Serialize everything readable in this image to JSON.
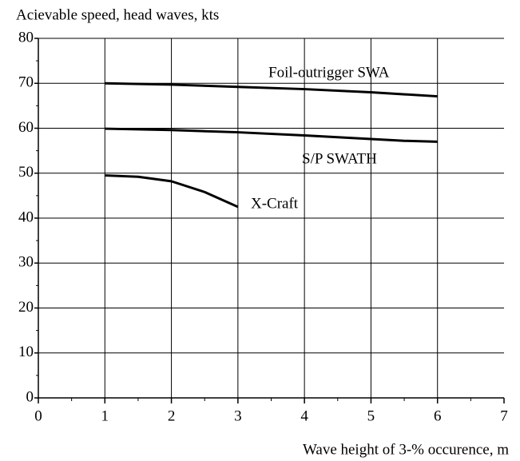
{
  "chart_data": {
    "type": "line",
    "y_label": "Acievable speed, head waves, kts",
    "x_label": "Wave height of 3-% occurence, m",
    "xlim": [
      0,
      7
    ],
    "xticks": [
      0,
      1,
      2,
      3,
      4,
      5,
      6,
      7
    ],
    "ylim": [
      0,
      80
    ],
    "yticks": [
      0,
      10,
      20,
      30,
      40,
      50,
      60,
      70,
      80
    ],
    "grid": true,
    "series": [
      {
        "name": "Foil-outrigger SWA",
        "color": "#000000",
        "x": [
          1,
          2,
          3,
          4,
          5,
          6
        ],
        "values": [
          70,
          69.7,
          69.2,
          68.7,
          68.0,
          67.1
        ]
      },
      {
        "name": "S/P SWATH",
        "color": "#000000",
        "x": [
          1,
          2,
          3,
          4,
          5,
          5.5,
          6
        ],
        "values": [
          59.9,
          59.6,
          59.1,
          58.4,
          57.6,
          57.2,
          57.0
        ]
      },
      {
        "name": "X-Craft",
        "color": "#000000",
        "x": [
          1,
          1.5,
          2,
          2.5,
          3
        ],
        "values": [
          49.5,
          49.2,
          48.2,
          45.8,
          42.5
        ]
      }
    ]
  }
}
